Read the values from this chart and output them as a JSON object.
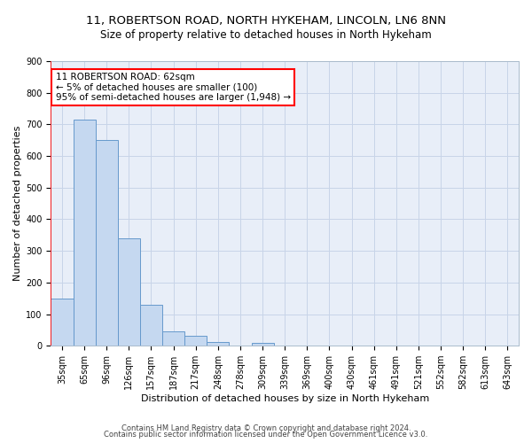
{
  "title1": "11, ROBERTSON ROAD, NORTH HYKEHAM, LINCOLN, LN6 8NN",
  "title2": "Size of property relative to detached houses in North Hykeham",
  "xlabel": "Distribution of detached houses by size in North Hykeham",
  "ylabel": "Number of detached properties",
  "categories": [
    "35sqm",
    "65sqm",
    "96sqm",
    "126sqm",
    "157sqm",
    "187sqm",
    "217sqm",
    "248sqm",
    "278sqm",
    "309sqm",
    "339sqm",
    "369sqm",
    "400sqm",
    "430sqm",
    "461sqm",
    "491sqm",
    "521sqm",
    "552sqm",
    "582sqm",
    "613sqm",
    "643sqm"
  ],
  "values": [
    150,
    715,
    650,
    340,
    130,
    45,
    32,
    12,
    0,
    10,
    0,
    0,
    0,
    0,
    0,
    0,
    0,
    0,
    0,
    0,
    0
  ],
  "bar_color": "#c5d8f0",
  "bar_edge_color": "#6699cc",
  "annotation_title": "11 ROBERTSON ROAD: 62sqm",
  "annotation_line1": "← 5% of detached houses are smaller (100)",
  "annotation_line2": "95% of semi-detached houses are larger (1,948) →",
  "footer1": "Contains HM Land Registry data © Crown copyright and database right 2024.",
  "footer2": "Contains public sector information licensed under the Open Government Licence v3.0.",
  "ylim": [
    0,
    900
  ],
  "yticks": [
    0,
    100,
    200,
    300,
    400,
    500,
    600,
    700,
    800,
    900
  ],
  "bg_color": "#e8eef8",
  "grid_color": "#c8d4e8",
  "title1_fontsize": 9.5,
  "title2_fontsize": 8.5,
  "xlabel_fontsize": 8,
  "ylabel_fontsize": 8,
  "tick_fontsize": 7,
  "ann_fontsize": 7.5,
  "footer_fontsize": 6
}
